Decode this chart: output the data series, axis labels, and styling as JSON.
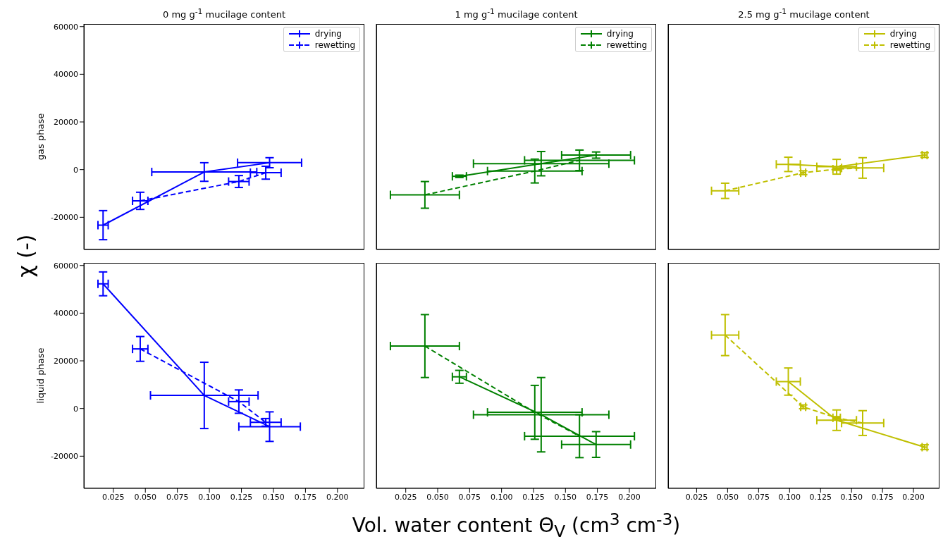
{
  "chart_data": [
    {
      "type": "line",
      "title": "0 mg g$^{-1}$ mucilage content",
      "ylabel": "gas phase",
      "annotations": [
        "χ (-)"
      ],
      "tick_labels": "y",
      "legend": "top right",
      "xlim": [
        0.002,
        0.221
      ],
      "ylim": [
        -33500,
        61100
      ],
      "xticks": [
        0.025,
        0.05,
        0.075,
        0.1,
        0.125,
        0.15,
        0.175,
        0.2
      ],
      "yticks": [
        -20000,
        0,
        20000,
        40000,
        60000
      ],
      "series": [
        {
          "name": "drying",
          "color": "#0000ff",
          "line_style": "solid",
          "x": [
            0.017,
            0.096,
            0.147
          ],
          "values": [
            -23300,
            -1000,
            2900
          ],
          "xerrors": [
            0.004,
            0.041,
            0.025
          ],
          "errors": [
            6100,
            3900,
            2100
          ]
        },
        {
          "name": "rewetting",
          "color": "#0000ff",
          "line_style": "dashed",
          "x": [
            0.046,
            0.123,
            0.144
          ],
          "values": [
            -13100,
            -5000,
            -1300
          ],
          "xerrors": [
            0.006,
            0.008,
            0.012
          ],
          "errors": [
            3600,
            2500,
            2700
          ]
        }
      ]
    },
    {
      "type": "line",
      "title": "1 mg g$^{-1}$ mucilage content",
      "tick_labels": false,
      "legend": "top right",
      "xlim": [
        0.002,
        0.221
      ],
      "ylim": [
        -33500,
        61100
      ],
      "xticks": [
        0.025,
        0.05,
        0.075,
        0.1,
        0.125,
        0.15,
        0.175,
        0.2
      ],
      "yticks": [
        -20000,
        0,
        20000,
        40000,
        60000
      ],
      "series": [
        {
          "name": "drying",
          "color": "#008000",
          "line_style": "solid",
          "x": [
            0.067,
            0.131,
            0.174
          ],
          "values": [
            -2800,
            2500,
            6100
          ],
          "xerrors": [
            0.0055,
            0.053,
            0.027
          ],
          "errors": [
            500,
            5100,
            1300
          ]
        },
        {
          "name": "rewetting",
          "color": "#008000",
          "line_style": "dashed",
          "x": [
            0.04,
            0.126,
            0.161
          ],
          "values": [
            -10600,
            -600,
            3900
          ],
          "xerrors": [
            0.027,
            0.037,
            0.043
          ],
          "errors": [
            5600,
            5000,
            4300
          ]
        }
      ]
    },
    {
      "type": "line",
      "title": "2.5 mg g$^{-1}$ mucilage content",
      "tick_labels": false,
      "legend": "top right",
      "xlim": [
        0.002,
        0.221
      ],
      "ylim": [
        -33500,
        61100
      ],
      "xticks": [
        0.025,
        0.05,
        0.075,
        0.1,
        0.125,
        0.15,
        0.175,
        0.2
      ],
      "yticks": [
        -20000,
        0,
        20000,
        40000,
        60000
      ],
      "series": [
        {
          "name": "drying",
          "color": "#bfbf00",
          "line_style": "solid",
          "x": [
            0.099,
            0.138,
            0.209
          ],
          "values": [
            2200,
            1200,
            6100
          ],
          "xerrors": [
            0.0097,
            0.016,
            0.002
          ],
          "errors": [
            3000,
            3100,
            1000
          ]
        },
        {
          "name": "rewetting",
          "color": "#bfbf00",
          "line_style": "dashed",
          "x": [
            0.048,
            0.111,
            0.138,
            0.159
          ],
          "values": [
            -8900,
            -1300,
            200,
            700
          ],
          "xerrors": [
            0.011,
            0.002,
            0.003,
            0.017
          ],
          "errors": [
            3200,
            800,
            500,
            4300
          ]
        }
      ]
    },
    {
      "type": "line",
      "ylabel": "liquid phase",
      "xlim": [
        0.002,
        0.221
      ],
      "ylim": [
        -33500,
        61100
      ],
      "xticks": [
        0.025,
        {
          "value": 0.05,
          "label": "0.050"
        },
        0.075,
        {
          "value": 0.1,
          "label": "0.100"
        },
        0.125,
        {
          "value": 0.15,
          "label": "0.150"
        },
        0.175,
        {
          "value": 0.2,
          "label": "0.200"
        }
      ],
      "yticks": [
        -20000,
        0,
        20000,
        40000,
        60000
      ],
      "series": [
        {
          "color": "#0000ff",
          "line_style": "solid",
          "x": [
            0.017,
            0.096,
            0.147
          ],
          "values": [
            52300,
            5500,
            -7600
          ],
          "xerrors": [
            0.004,
            0.042,
            0.024
          ],
          "errors": [
            5000,
            13900,
            6200
          ]
        },
        {
          "color": "#0000ff",
          "line_style": "dashed",
          "x": [
            0.046,
            0.123,
            0.144
          ],
          "values": [
            25000,
            2900,
            -5800
          ],
          "xerrors": [
            0.006,
            0.008,
            0.012
          ],
          "errors": [
            5200,
            4900,
            1600
          ]
        }
      ]
    },
    {
      "type": "line",
      "xlabel": "Vol. water content Θ$_{V}$ (cm$^{3}$ cm$^{-3}$)",
      "tick_labels": "x",
      "xlim": [
        0.002,
        0.221
      ],
      "ylim": [
        -33500,
        61100
      ],
      "xticks": [
        0.025,
        {
          "value": 0.05,
          "label": "0.050"
        },
        0.075,
        {
          "value": 0.1,
          "label": "0.100"
        },
        0.125,
        {
          "value": 0.15,
          "label": "0.150"
        },
        0.175,
        {
          "value": 0.2,
          "label": "0.200"
        }
      ],
      "yticks": [
        -20000,
        0,
        20000,
        40000,
        60000
      ],
      "series": [
        {
          "color": "#008000",
          "line_style": "solid",
          "x": [
            0.067,
            0.131,
            0.174
          ],
          "values": [
            13300,
            -2600,
            -15100
          ],
          "xerrors": [
            0.0055,
            0.053,
            0.027
          ],
          "errors": [
            2700,
            15600,
            5400
          ]
        },
        {
          "color": "#008000",
          "line_style": "dashed",
          "x": [
            0.04,
            0.126,
            0.161
          ],
          "values": [
            26200,
            -1600,
            -11600
          ],
          "xerrors": [
            0.027,
            0.037,
            0.043
          ],
          "errors": [
            13200,
            11300,
            9000
          ]
        }
      ]
    },
    {
      "type": "line",
      "tick_labels": "x",
      "xlim": [
        0.002,
        0.221
      ],
      "ylim": [
        -33500,
        61100
      ],
      "xticks": [
        0.025,
        {
          "value": 0.05,
          "label": "0.050"
        },
        0.075,
        {
          "value": 0.1,
          "label": "0.100"
        },
        0.125,
        {
          "value": 0.15,
          "label": "0.150"
        },
        0.175,
        {
          "value": 0.2,
          "label": "0.200"
        }
      ],
      "yticks": [
        -20000,
        0,
        20000,
        40000,
        60000
      ],
      "series": [
        {
          "color": "#bfbf00",
          "line_style": "solid",
          "x": [
            0.099,
            0.138,
            0.209
          ],
          "values": [
            11300,
            -4900,
            -16200
          ],
          "xerrors": [
            0.0097,
            0.016,
            0.002
          ],
          "errors": [
            5700,
            4300,
            1000
          ]
        },
        {
          "color": "#bfbf00",
          "line_style": "dashed",
          "x": [
            0.048,
            0.111,
            0.138,
            0.159
          ],
          "values": [
            30800,
            700,
            -3900,
            -6100
          ],
          "xerrors": [
            0.011,
            0.002,
            0.003,
            0.017
          ],
          "errors": [
            8600,
            800,
            500,
            5200
          ]
        }
      ]
    }
  ]
}
